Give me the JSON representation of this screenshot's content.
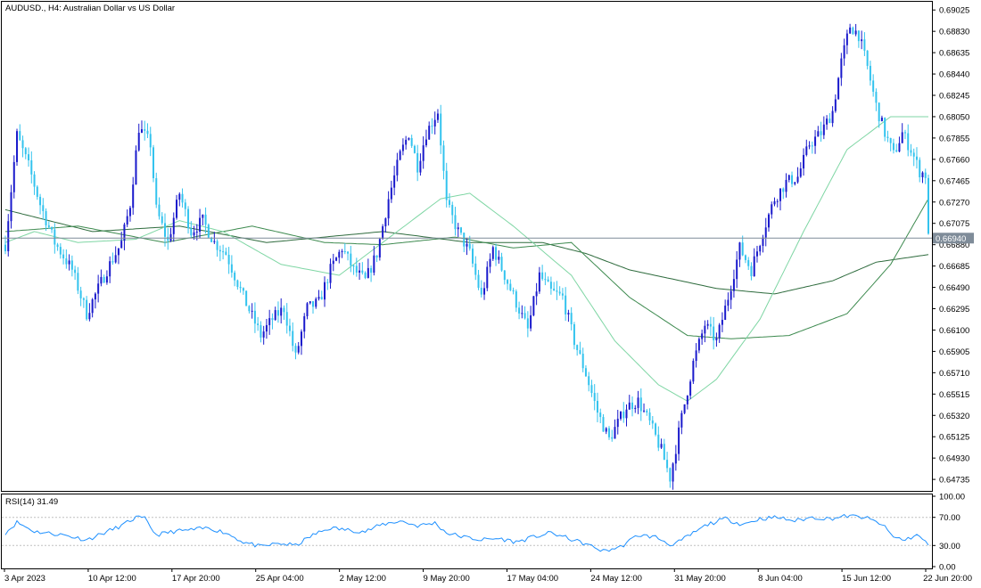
{
  "chart_data": {
    "type": "candlestick",
    "title": "AUDUSD., H4:  Australian Dollar vs US Dollar",
    "price_axis": {
      "range": [
        0.6463,
        0.691
      ],
      "ticks": [
        "0.69025",
        "0.68830",
        "0.68635",
        "0.68440",
        "0.68245",
        "0.68050",
        "0.67855",
        "0.67660",
        "0.67465",
        "0.67270",
        "0.67075",
        "0.66880",
        "0.66685",
        "0.66490",
        "0.66295",
        "0.66100",
        "0.65905",
        "0.65710",
        "0.65515",
        "0.65320",
        "0.65125",
        "0.64930",
        "0.64735"
      ],
      "current_price": "0.66940"
    },
    "time_axis": {
      "labels": [
        "3 Apr 2023",
        "10 Apr 12:00",
        "17 Apr 20:00",
        "25 Apr 04:00",
        "2 May 12:00",
        "9 May 20:00",
        "17 May 04:00",
        "24 May 12:00",
        "31 May 20:00",
        "8 Jun 04:00",
        "15 Jun 12:00",
        "22 Jun 20:00"
      ]
    },
    "price_keypoints": [
      [
        0,
        0.6688
      ],
      [
        4,
        0.6788
      ],
      [
        8,
        0.676
      ],
      [
        12,
        0.6725
      ],
      [
        17,
        0.669
      ],
      [
        23,
        0.6665
      ],
      [
        28,
        0.6625
      ],
      [
        35,
        0.6665
      ],
      [
        40,
        0.669
      ],
      [
        43,
        0.6725
      ],
      [
        46,
        0.6795
      ],
      [
        50,
        0.678
      ],
      [
        52,
        0.672
      ],
      [
        56,
        0.669
      ],
      [
        60,
        0.6735
      ],
      [
        64,
        0.67
      ],
      [
        68,
        0.671
      ],
      [
        72,
        0.669
      ],
      [
        76,
        0.668
      ],
      [
        82,
        0.664
      ],
      [
        88,
        0.6605
      ],
      [
        92,
        0.662
      ],
      [
        96,
        0.663
      ],
      [
        100,
        0.6585
      ],
      [
        104,
        0.663
      ],
      [
        108,
        0.6635
      ],
      [
        112,
        0.6665
      ],
      [
        116,
        0.6685
      ],
      [
        120,
        0.6665
      ],
      [
        124,
        0.6655
      ],
      [
        128,
        0.668
      ],
      [
        132,
        0.673
      ],
      [
        136,
        0.677
      ],
      [
        139,
        0.679
      ],
      [
        142,
        0.676
      ],
      [
        145,
        0.679
      ],
      [
        149,
        0.681
      ],
      [
        152,
        0.6725
      ],
      [
        156,
        0.67
      ],
      [
        160,
        0.668
      ],
      [
        164,
        0.664
      ],
      [
        168,
        0.6685
      ],
      [
        172,
        0.666
      ],
      [
        176,
        0.6635
      ],
      [
        180,
        0.661
      ],
      [
        184,
        0.666
      ],
      [
        188,
        0.6645
      ],
      [
        192,
        0.664
      ],
      [
        196,
        0.66
      ],
      [
        200,
        0.657
      ],
      [
        204,
        0.6535
      ],
      [
        208,
        0.651
      ],
      [
        211,
        0.6525
      ],
      [
        214,
        0.654
      ],
      [
        218,
        0.6545
      ],
      [
        222,
        0.6525
      ],
      [
        226,
        0.65
      ],
      [
        229,
        0.6475
      ],
      [
        233,
        0.653
      ],
      [
        237,
        0.658
      ],
      [
        241,
        0.6615
      ],
      [
        245,
        0.66
      ],
      [
        249,
        0.664
      ],
      [
        253,
        0.6685
      ],
      [
        257,
        0.6665
      ],
      [
        261,
        0.67
      ],
      [
        265,
        0.673
      ],
      [
        269,
        0.6745
      ],
      [
        273,
        0.675
      ],
      [
        277,
        0.678
      ],
      [
        281,
        0.679
      ],
      [
        285,
        0.681
      ],
      [
        288,
        0.6855
      ],
      [
        291,
        0.6888
      ],
      [
        294,
        0.688
      ],
      [
        297,
        0.685
      ],
      [
        300,
        0.6815
      ],
      [
        303,
        0.679
      ],
      [
        306,
        0.677
      ],
      [
        309,
        0.679
      ],
      [
        312,
        0.6775
      ],
      [
        315,
        0.6755
      ],
      [
        317,
        0.6752
      ],
      [
        318,
        0.6694
      ]
    ],
    "moving_averages": [
      {
        "keypoints": [
          [
            0,
            0.672
          ],
          [
            30,
            0.67
          ],
          [
            60,
            0.6705
          ],
          [
            90,
            0.669
          ],
          [
            130,
            0.67
          ],
          [
            160,
            0.669
          ],
          [
            185,
            0.669
          ],
          [
            200,
            0.668
          ],
          [
            215,
            0.6665
          ],
          [
            245,
            0.6648
          ],
          [
            265,
            0.6643
          ],
          [
            285,
            0.6655
          ],
          [
            300,
            0.6672
          ],
          [
            318,
            0.6679
          ]
        ]
      },
      {
        "keypoints": [
          [
            0,
            0.67
          ],
          [
            25,
            0.6705
          ],
          [
            55,
            0.669
          ],
          [
            85,
            0.6705
          ],
          [
            110,
            0.669
          ],
          [
            130,
            0.6688
          ],
          [
            155,
            0.6695
          ],
          [
            175,
            0.6685
          ],
          [
            195,
            0.669
          ],
          [
            215,
            0.664
          ],
          [
            235,
            0.6605
          ],
          [
            250,
            0.6602
          ],
          [
            270,
            0.6605
          ],
          [
            290,
            0.6625
          ],
          [
            305,
            0.667
          ],
          [
            318,
            0.673
          ]
        ]
      },
      {
        "keypoints": [
          [
            0,
            0.669
          ],
          [
            10,
            0.67
          ],
          [
            25,
            0.669
          ],
          [
            45,
            0.6693
          ],
          [
            60,
            0.671
          ],
          [
            75,
            0.67
          ],
          [
            95,
            0.667
          ],
          [
            115,
            0.666
          ],
          [
            130,
            0.669
          ],
          [
            150,
            0.673
          ],
          [
            160,
            0.6735
          ],
          [
            175,
            0.6705
          ],
          [
            195,
            0.666
          ],
          [
            210,
            0.66
          ],
          [
            225,
            0.656
          ],
          [
            235,
            0.6545
          ],
          [
            245,
            0.6565
          ],
          [
            260,
            0.662
          ],
          [
            275,
            0.67
          ],
          [
            290,
            0.6775
          ],
          [
            305,
            0.6805
          ],
          [
            318,
            0.6805
          ]
        ]
      }
    ],
    "rsi": {
      "label": "RSI(14) 31.49",
      "levels": [
        "100.00",
        "70.00",
        "30.00",
        "0.00"
      ],
      "keypoints": [
        [
          0,
          48
        ],
        [
          4,
          63
        ],
        [
          10,
          50
        ],
        [
          20,
          45
        ],
        [
          28,
          38
        ],
        [
          34,
          48
        ],
        [
          40,
          58
        ],
        [
          45,
          70
        ],
        [
          48,
          68
        ],
        [
          52,
          45
        ],
        [
          58,
          50
        ],
        [
          64,
          52
        ],
        [
          70,
          55
        ],
        [
          76,
          48
        ],
        [
          82,
          35
        ],
        [
          88,
          28
        ],
        [
          94,
          33
        ],
        [
          100,
          30
        ],
        [
          106,
          45
        ],
        [
          112,
          55
        ],
        [
          118,
          52
        ],
        [
          124,
          50
        ],
        [
          130,
          60
        ],
        [
          136,
          65
        ],
        [
          142,
          58
        ],
        [
          148,
          62
        ],
        [
          152,
          48
        ],
        [
          158,
          42
        ],
        [
          164,
          38
        ],
        [
          170,
          40
        ],
        [
          176,
          35
        ],
        [
          182,
          42
        ],
        [
          188,
          48
        ],
        [
          194,
          40
        ],
        [
          200,
          32
        ],
        [
          206,
          22
        ],
        [
          212,
          28
        ],
        [
          218,
          45
        ],
        [
          224,
          42
        ],
        [
          230,
          30
        ],
        [
          236,
          45
        ],
        [
          242,
          60
        ],
        [
          248,
          68
        ],
        [
          254,
          60
        ],
        [
          260,
          68
        ],
        [
          266,
          70
        ],
        [
          272,
          65
        ],
        [
          278,
          70
        ],
        [
          284,
          68
        ],
        [
          290,
          72
        ],
        [
          296,
          70
        ],
        [
          302,
          60
        ],
        [
          306,
          42
        ],
        [
          310,
          38
        ],
        [
          314,
          45
        ],
        [
          318,
          31.49
        ]
      ]
    }
  }
}
